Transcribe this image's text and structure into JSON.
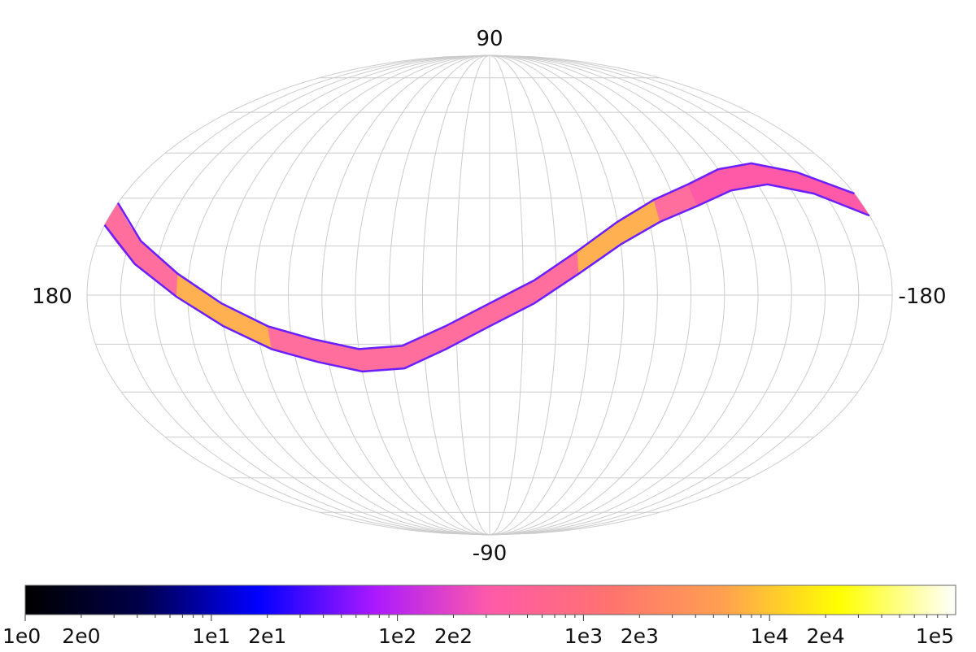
{
  "chart_data": {
    "type": "heatmap",
    "projection": "mollweide",
    "coordinate_labels": {
      "top": "90",
      "bottom": "-90",
      "left": "180",
      "right": "-180"
    },
    "graticule": {
      "meridian_step_deg": 15,
      "parallel_step_deg": 15,
      "color": "#cccccc"
    },
    "band": {
      "description_points_lon_lat": [
        [
          180,
          25
        ],
        [
          160,
          13
        ],
        [
          140,
          3
        ],
        [
          120,
          -6
        ],
        [
          100,
          -13
        ],
        [
          80,
          -17
        ],
        [
          60,
          -20
        ],
        [
          40,
          -19
        ],
        [
          20,
          -13
        ],
        [
          0,
          -6
        ],
        [
          -20,
          1
        ],
        [
          -40,
          10
        ],
        [
          -60,
          19
        ],
        [
          -80,
          26
        ],
        [
          -100,
          31
        ],
        [
          -120,
          36
        ],
        [
          -140,
          38
        ],
        [
          -160,
          35
        ],
        [
          -180,
          28
        ]
      ],
      "width_deg": 7
    },
    "colorbar": {
      "scale": "log",
      "range": [
        1,
        100000
      ],
      "tick_labels": [
        "1e0",
        "2e0",
        "1e1",
        "2e1",
        "1e2",
        "2e2",
        "1e3",
        "2e3",
        "1e4",
        "2e4",
        "1e5"
      ],
      "tick_values": [
        1,
        2,
        10,
        20,
        100,
        200,
        1000,
        2000,
        10000,
        20000,
        100000
      ],
      "colormap_stops": [
        "#000000",
        "#00004a",
        "#0000ff",
        "#aa19ff",
        "#ff5aa8",
        "#ff7270",
        "#ffa050",
        "#ffff00",
        "#ffffff"
      ]
    }
  }
}
